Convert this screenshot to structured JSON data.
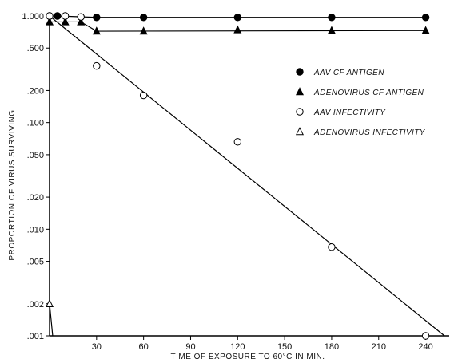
{
  "chart_data": {
    "type": "line",
    "xlabel": "TIME OF EXPOSURE  TO 60°C IN MIN.",
    "ylabel": "PROPORTION OF VIRUS SURVIVING",
    "x_scale": "linear",
    "y_scale": "log",
    "xlim": [
      0,
      255
    ],
    "ylim": [
      0.001,
      1.0
    ],
    "x_ticks": [
      30,
      60,
      90,
      120,
      150,
      180,
      210,
      240
    ],
    "x_tick_labels": [
      "30",
      "60",
      "90",
      "120",
      "150",
      "180",
      "210",
      "240"
    ],
    "y_ticks": [
      0.001,
      0.002,
      0.005,
      0.01,
      0.02,
      0.05,
      0.1,
      0.2,
      0.5,
      1.0
    ],
    "y_tick_labels": [
      ".001",
      ".002",
      ".005",
      ".010",
      ".020",
      ".050",
      ".100",
      ".200",
      ".500",
      "1.000"
    ],
    "grid": false,
    "legend_position": "right",
    "series": [
      {
        "name": "AAV CF ANTIGEN",
        "marker": "filled-circle",
        "color": "#000000",
        "x": [
          0,
          5,
          30,
          60,
          120,
          180,
          240
        ],
        "y": [
          1.0,
          1.0,
          0.97,
          0.97,
          0.97,
          0.97,
          0.97
        ]
      },
      {
        "name": "ADENOVIRUS CF ANTIGEN",
        "marker": "filled-triangle",
        "color": "#000000",
        "x": [
          0,
          10,
          20,
          30,
          60,
          120,
          180,
          240
        ],
        "y": [
          0.88,
          0.88,
          0.88,
          0.72,
          0.72,
          0.74,
          0.73,
          0.73
        ]
      },
      {
        "name": "AAV INFECTIVITY",
        "marker": "open-circle",
        "color": "#000000",
        "x": [
          0,
          10,
          20,
          30,
          60,
          120,
          180,
          240
        ],
        "y": [
          1.0,
          1.0,
          0.98,
          0.34,
          0.18,
          0.066,
          0.0068,
          0.001
        ]
      },
      {
        "name": "ADENOVIRUS INFECTIVITY",
        "marker": "open-triangle",
        "color": "#000000",
        "x": [
          0
        ],
        "y": [
          0.002
        ]
      }
    ]
  }
}
